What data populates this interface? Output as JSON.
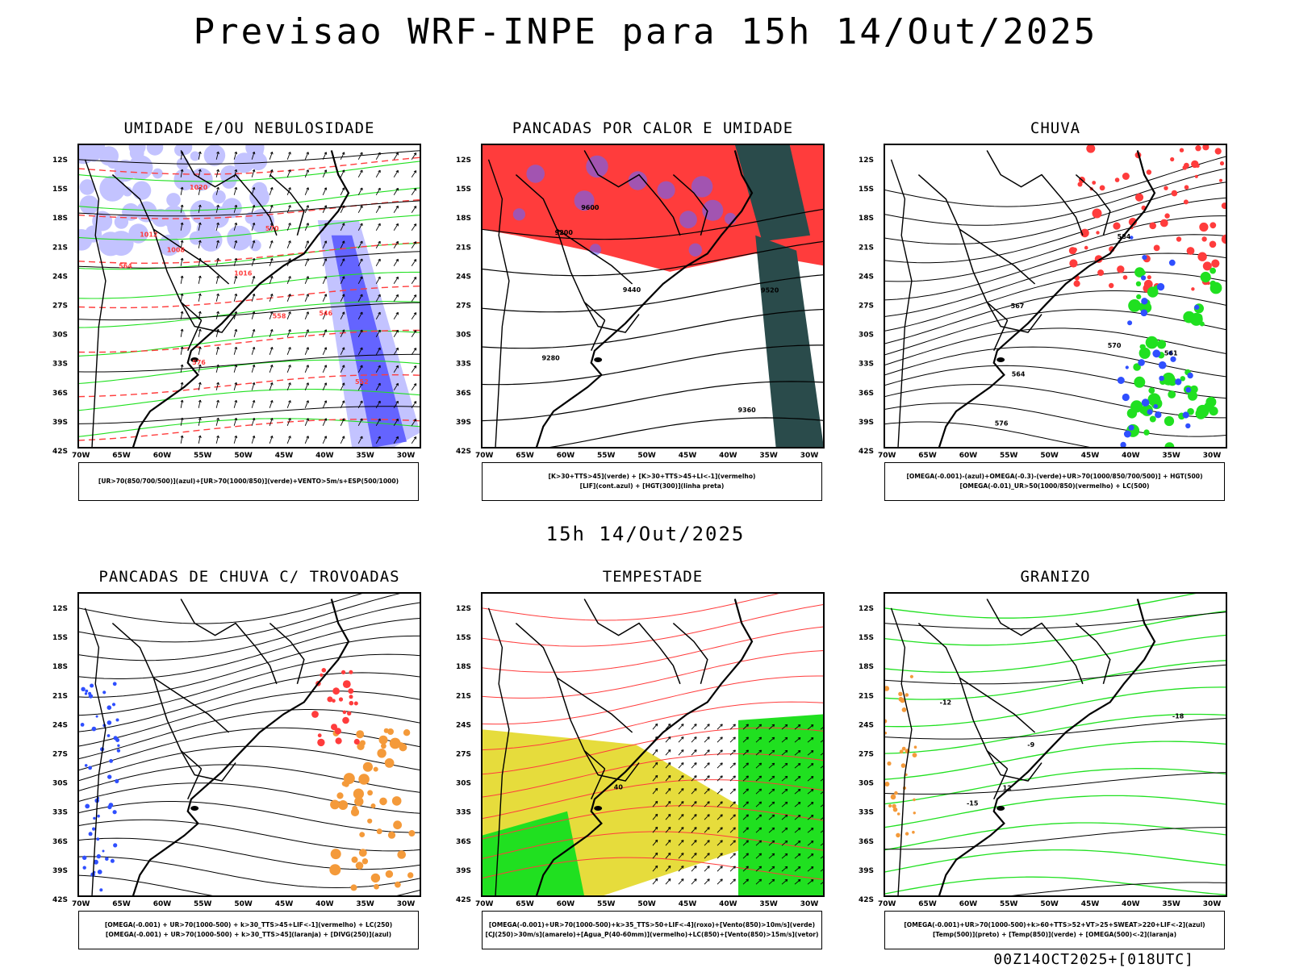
{
  "title": "Previsao WRF-INPE  para 15h 14/Out/2025",
  "subtitle": "15h 14/Out/2025",
  "footer": "00Z14OCT2025+[018UTC]",
  "axes": {
    "lat_labels": [
      "12S",
      "15S",
      "18S",
      "21S",
      "24S",
      "27S",
      "30S",
      "33S",
      "36S",
      "39S",
      "42S"
    ],
    "lon_labels": [
      "70W",
      "65W",
      "60W",
      "55W",
      "50W",
      "45W",
      "40W",
      "35W",
      "30W"
    ]
  },
  "colors": {
    "lightblue": "#c3c3ff",
    "blue": "#6464ff",
    "green": "#20e020",
    "red": "#ff3c3c",
    "darkteal": "#2a4b4b",
    "orange": "#f49a3a",
    "yellow": "#e6dc3c",
    "bluedot": "#2f4fff",
    "contour": "#000000"
  },
  "panels": [
    {
      "title": "UMIDADE E/OU NEBULOSIDADE",
      "legend": [
        "[UR>70(850/700/500)](azul)+[UR>70(1000/850)](verde)+VENTO>5m/s+ESP(500/1000)"
      ],
      "labels": [
        "1008",
        "1012",
        "1016",
        "1020",
        "576",
        "570",
        "564",
        "558",
        "552",
        "546"
      ]
    },
    {
      "title": "PANCADAS POR CALOR E UMIDADE",
      "legend": [
        "[K>30+TTS>45](verde) + [K>30+TTS>45+LI<-1](vermelho)",
        "[LIF](cont.azul) + [HGT(300)](linha preta)"
      ],
      "labels": [
        "9600",
        "9520",
        "9440",
        "9360",
        "9280",
        "9200"
      ]
    },
    {
      "title": "CHUVA",
      "legend": [
        "[OMEGA(-0.001)-(azul)+OMEGA(-0.3)-(verde)+UR>70(1000/850/700/500)] + HGT(500)",
        "[OMEGA(-0.01)_UR>50(1000/850)(vermelho) + LC(500)"
      ],
      "labels": [
        "576",
        "570",
        "567",
        "564",
        "561",
        "584"
      ]
    },
    {
      "title": "PANCADAS DE CHUVA C/ TROVOADAS",
      "legend": [
        "[OMEGA(-0.001) + UR>70(1000-500) + k>30_TTS>45+LIF<-1](vermelho) + LC(250)",
        "[OMEGA(-0.001) + UR>70(1000-500) + k>30_TTS>45](laranja) + [DIVG(250)](azul)"
      ],
      "labels": []
    },
    {
      "title": "TEMPESTADE",
      "legend": [
        "[OMEGA(-0.001)+UR>70(1000-500)+k>35_TTS>50+LIF<-4](roxo)+[Vento(850)>10m/s](verde)",
        "[CJ(250)>30m/s](amarelo)+[Agua_P(40-60mm)](vermelho)+LC(850)+[Vento(850)>15m/s](vetor)"
      ],
      "labels": [
        "40"
      ]
    },
    {
      "title": "GRANIZO",
      "legend": [
        "[OMEGA(-0.001)+UR>70(1000-500)+k>60+TTS>52+VT>25+SWEAT>220+LIF<-2](azul)",
        "[Temp(500)](preto) + [Temp(850)](verde) + [OMEGA(500)<-2](laranja)"
      ],
      "labels": [
        "-9",
        "-12",
        "-15",
        "-18",
        "12"
      ]
    }
  ]
}
